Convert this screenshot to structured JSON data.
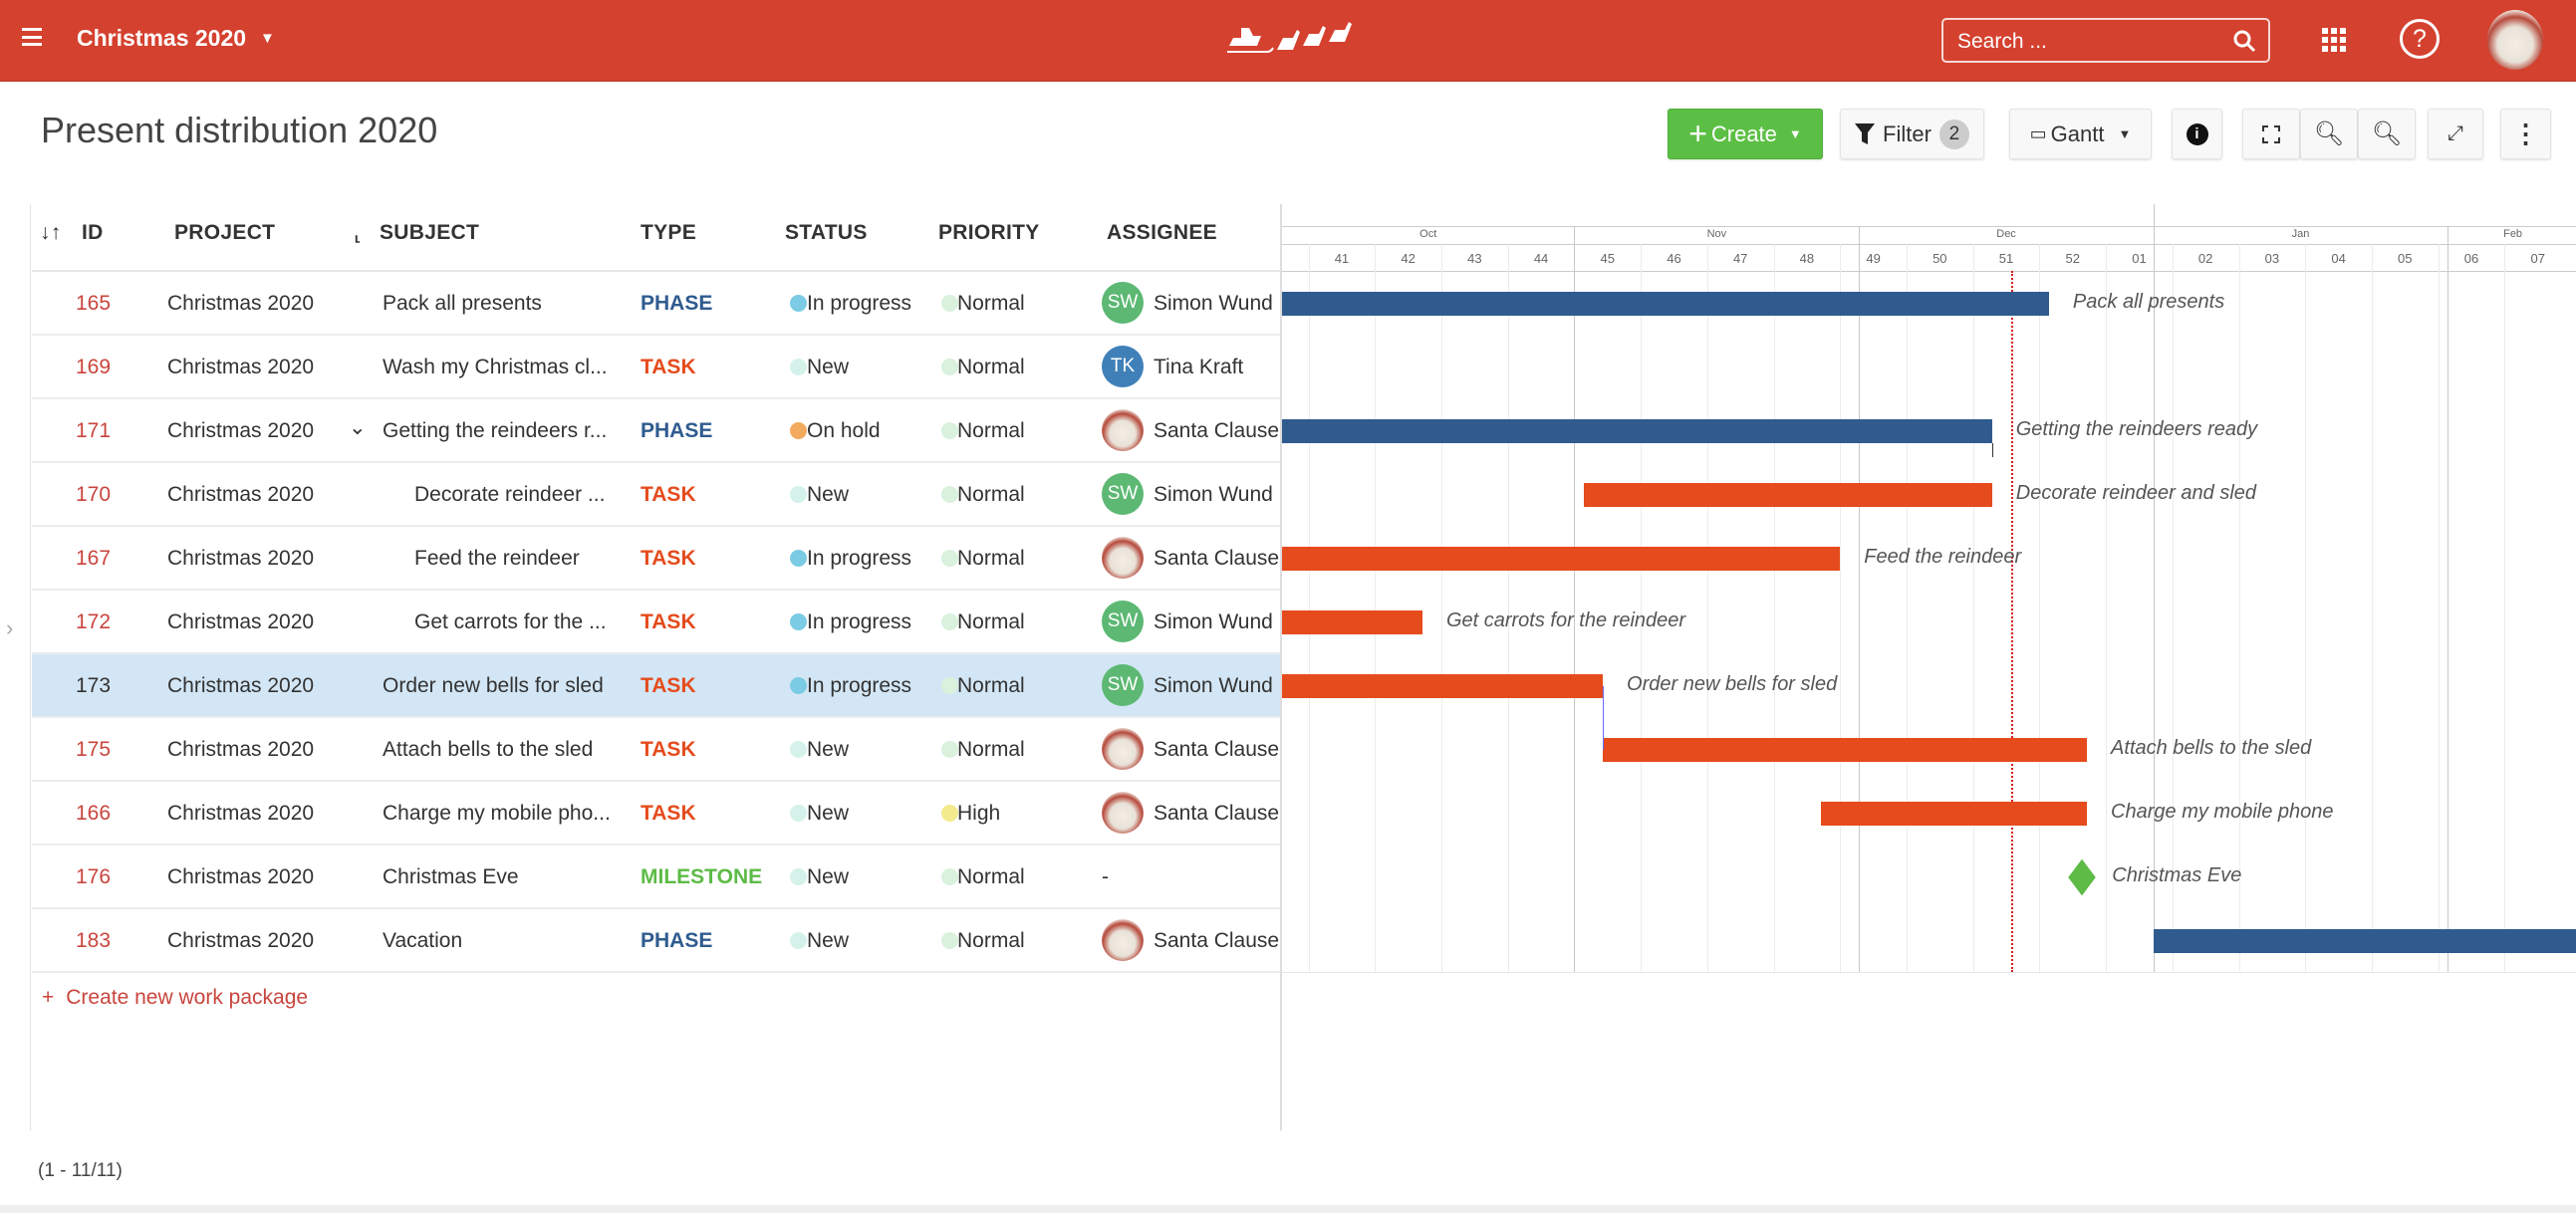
{
  "header": {
    "project": "Christmas 2020",
    "search_placeholder": "Search ..."
  },
  "page": {
    "title": "Present distribution 2020",
    "create": "Create",
    "filter": "Filter",
    "filter_count": "2",
    "view": "Gantt"
  },
  "colors": {
    "brand": "#d5412f",
    "phase": "#2f5b8f",
    "task": "#e54b1d",
    "milestone": "#5dbb46",
    "create_button": "#5cbf45",
    "today": "#d21d1d"
  },
  "table": {
    "columns": {
      "id": "ID",
      "project": "PROJECT",
      "subject": "SUBJECT",
      "type": "TYPE",
      "status": "STATUS",
      "priority": "PRIORITY",
      "assignee": "ASSIGNEE"
    },
    "rows": [
      {
        "id": "165",
        "project": "Christmas 2020",
        "subject": "Pack all presents",
        "type": "PHASE",
        "status": "In progress",
        "priority": "Normal",
        "assignee": "Simon Wund",
        "initials": "SW",
        "indent": 0
      },
      {
        "id": "169",
        "project": "Christmas 2020",
        "subject": "Wash my Christmas cl...",
        "type": "TASK",
        "status": "New",
        "priority": "Normal",
        "assignee": "Tina Kraft",
        "initials": "TK",
        "indent": 0
      },
      {
        "id": "171",
        "project": "Christmas 2020",
        "subject": "Getting the reindeers r...",
        "type": "PHASE",
        "status": "On hold",
        "priority": "Normal",
        "assignee": "Santa Clause",
        "initials": "",
        "indent": 0,
        "expanded": true
      },
      {
        "id": "170",
        "project": "Christmas 2020",
        "subject": "Decorate reindeer ...",
        "type": "TASK",
        "status": "New",
        "priority": "Normal",
        "assignee": "Simon Wund",
        "initials": "SW",
        "indent": 1
      },
      {
        "id": "167",
        "project": "Christmas 2020",
        "subject": "Feed the reindeer",
        "type": "TASK",
        "status": "In progress",
        "priority": "Normal",
        "assignee": "Santa Clause",
        "initials": "",
        "indent": 1
      },
      {
        "id": "172",
        "project": "Christmas 2020",
        "subject": "Get carrots for the ...",
        "type": "TASK",
        "status": "In progress",
        "priority": "Normal",
        "assignee": "Simon Wund",
        "initials": "SW",
        "indent": 1
      },
      {
        "id": "173",
        "project": "Christmas 2020",
        "subject": "Order new bells for sled",
        "type": "TASK",
        "status": "In progress",
        "priority": "Normal",
        "assignee": "Simon Wund",
        "initials": "SW",
        "indent": 0,
        "selected": true
      },
      {
        "id": "175",
        "project": "Christmas 2020",
        "subject": "Attach bells to the sled",
        "type": "TASK",
        "status": "New",
        "priority": "Normal",
        "assignee": "Santa Clause",
        "initials": "",
        "indent": 0
      },
      {
        "id": "166",
        "project": "Christmas 2020",
        "subject": "Charge my mobile pho...",
        "type": "TASK",
        "status": "New",
        "priority": "High",
        "assignee": "Santa Clause",
        "initials": "",
        "indent": 0
      },
      {
        "id": "176",
        "project": "Christmas 2020",
        "subject": "Christmas Eve",
        "type": "MILESTONE",
        "status": "New",
        "priority": "Normal",
        "assignee": "-",
        "initials": "",
        "indent": 0
      },
      {
        "id": "183",
        "project": "Christmas 2020",
        "subject": "Vacation",
        "type": "PHASE",
        "status": "New",
        "priority": "Normal",
        "assignee": "Santa Clause",
        "initials": "",
        "indent": 0
      }
    ],
    "create_label": "Create new work package",
    "pagination": "(1 - 11/11)"
  },
  "gantt": {
    "months": [
      "Oct",
      "Nov",
      "Dec",
      "Jan",
      "Feb"
    ],
    "weeks": [
      "41",
      "42",
      "43",
      "44",
      "45",
      "46",
      "47",
      "48",
      "49",
      "50",
      "51",
      "52",
      "01",
      "02",
      "03",
      "04",
      "05",
      "06",
      "07"
    ],
    "today": "2020-12-17",
    "items": [
      {
        "label": "Pack all presents",
        "type": "PHASE",
        "start": "2020-10-01",
        "end": "2020-12-20"
      },
      {
        "label": "",
        "type": "TASK",
        "start": null,
        "end": null
      },
      {
        "label": "Getting the reindeers ready",
        "type": "PHASE",
        "start": "2020-10-01",
        "end": "2020-12-14"
      },
      {
        "label": "Decorate reindeer and sled",
        "type": "TASK",
        "start": "2020-11-02",
        "end": "2020-12-14"
      },
      {
        "label": "Feed the reindeer",
        "type": "TASK",
        "start": "2020-10-01",
        "end": "2020-11-28"
      },
      {
        "label": "Get carrots for the reindeer",
        "type": "TASK",
        "start": "2020-10-01",
        "end": "2020-10-15"
      },
      {
        "label": "Order new bells for sled",
        "type": "TASK",
        "start": "2020-10-01",
        "end": "2020-11-03"
      },
      {
        "label": "Attach bells to the sled",
        "type": "TASK",
        "start": "2020-11-04",
        "end": "2020-12-24"
      },
      {
        "label": "Charge my mobile phone",
        "type": "TASK",
        "start": "2020-11-27",
        "end": "2020-12-24"
      },
      {
        "label": "Christmas Eve",
        "type": "MILESTONE",
        "start": "2020-12-24",
        "end": "2020-12-24"
      },
      {
        "label": "",
        "type": "PHASE",
        "start": "2021-01-01",
        "end": "2021-03-31"
      }
    ]
  }
}
